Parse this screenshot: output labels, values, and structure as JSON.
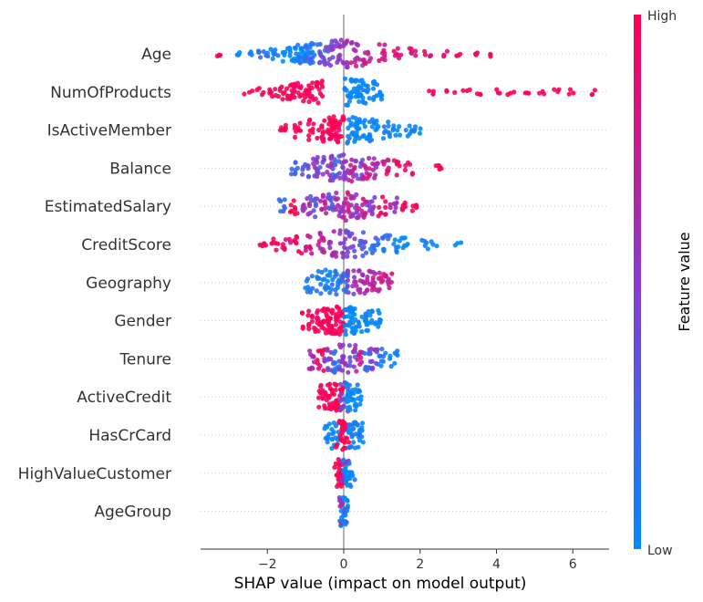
{
  "chart_data": {
    "type": "scatter",
    "title": "",
    "xlabel": "SHAP value (impact on model output)",
    "ylabel": "",
    "xlim": [
      -3.75,
      6.95
    ],
    "xticks": [
      -2,
      0,
      2,
      4,
      6
    ],
    "xtick_labels": [
      "−2",
      "0",
      "2",
      "4",
      "6"
    ],
    "grid": false,
    "colorbar": {
      "label": "Feature value",
      "high_label": "High",
      "low_label": "Low",
      "low_color": "#008bfb",
      "high_color": "#ff0052"
    },
    "features": [
      {
        "name": "Age",
        "points": [
          {
            "x": -3.2,
            "c": 1
          },
          {
            "x": -2.8,
            "c": 0
          },
          {
            "x": -2.5,
            "c": 0
          },
          {
            "x": -2.2,
            "c": 0.1
          },
          {
            "x": -2.0,
            "c": 0.1
          },
          {
            "x": -1.8,
            "c": 0.05
          },
          {
            "x": -1.5,
            "c": 0
          },
          {
            "x": -1.3,
            "c": 0
          },
          {
            "x": -1.2,
            "c": 0
          },
          {
            "x": -1.1,
            "c": 0.1
          },
          {
            "x": -1.0,
            "c": 0
          },
          {
            "x": -0.9,
            "c": 0.2
          },
          {
            "x": -0.8,
            "c": 0.1
          },
          {
            "x": -0.6,
            "c": 0.3
          },
          {
            "x": -0.4,
            "c": 0.4
          },
          {
            "x": -0.2,
            "c": 0.5
          },
          {
            "x": 0.0,
            "c": 0.6
          },
          {
            "x": 0.3,
            "c": 0.7
          },
          {
            "x": 0.6,
            "c": 0.7
          },
          {
            "x": 1.0,
            "c": 0.8
          },
          {
            "x": 1.4,
            "c": 0.85
          },
          {
            "x": 1.8,
            "c": 0.9
          },
          {
            "x": 2.2,
            "c": 0.9
          },
          {
            "x": 2.6,
            "c": 0.95
          },
          {
            "x": 3.0,
            "c": 1
          },
          {
            "x": 3.4,
            "c": 1
          },
          {
            "x": 3.8,
            "c": 1
          }
        ]
      },
      {
        "name": "NumOfProducts",
        "points": [
          {
            "x": -2.5,
            "c": 1
          },
          {
            "x": -2.2,
            "c": 1
          },
          {
            "x": -1.9,
            "c": 1
          },
          {
            "x": -1.7,
            "c": 1
          },
          {
            "x": -1.5,
            "c": 1
          },
          {
            "x": -1.4,
            "c": 1
          },
          {
            "x": -1.3,
            "c": 1
          },
          {
            "x": -1.2,
            "c": 1
          },
          {
            "x": -1.0,
            "c": 1
          },
          {
            "x": -0.8,
            "c": 1
          },
          {
            "x": -0.6,
            "c": 1
          },
          {
            "x": 0.1,
            "c": 0
          },
          {
            "x": 0.3,
            "c": 0
          },
          {
            "x": 0.4,
            "c": 0
          },
          {
            "x": 0.5,
            "c": 0
          },
          {
            "x": 0.7,
            "c": 0
          },
          {
            "x": 0.9,
            "c": 0
          },
          {
            "x": 2.3,
            "c": 1
          },
          {
            "x": 2.8,
            "c": 1
          },
          {
            "x": 3.2,
            "c": 1
          },
          {
            "x": 3.6,
            "c": 1
          },
          {
            "x": 4.0,
            "c": 1
          },
          {
            "x": 4.4,
            "c": 1
          },
          {
            "x": 4.8,
            "c": 1
          },
          {
            "x": 5.2,
            "c": 1
          },
          {
            "x": 5.6,
            "c": 1
          },
          {
            "x": 6.0,
            "c": 1
          },
          {
            "x": 6.5,
            "c": 1
          }
        ]
      },
      {
        "name": "IsActiveMember",
        "points": [
          {
            "x": -1.6,
            "c": 1
          },
          {
            "x": -1.2,
            "c": 1
          },
          {
            "x": -0.9,
            "c": 1
          },
          {
            "x": -0.6,
            "c": 1
          },
          {
            "x": -0.4,
            "c": 1
          },
          {
            "x": -0.3,
            "c": 1
          },
          {
            "x": -0.2,
            "c": 1
          },
          {
            "x": -0.1,
            "c": 1
          },
          {
            "x": 0.2,
            "c": 0
          },
          {
            "x": 0.3,
            "c": 0
          },
          {
            "x": 0.4,
            "c": 0
          },
          {
            "x": 0.6,
            "c": 0
          },
          {
            "x": 0.8,
            "c": 0
          },
          {
            "x": 1.1,
            "c": 0
          },
          {
            "x": 1.4,
            "c": 0
          },
          {
            "x": 1.7,
            "c": 0
          },
          {
            "x": 1.9,
            "c": 0
          }
        ]
      },
      {
        "name": "Balance",
        "points": [
          {
            "x": -1.3,
            "c": 0.2
          },
          {
            "x": -1.0,
            "c": 0.3
          },
          {
            "x": -0.8,
            "c": 0.5
          },
          {
            "x": -0.6,
            "c": 0.4
          },
          {
            "x": -0.4,
            "c": 0.6
          },
          {
            "x": -0.2,
            "c": 0.3
          },
          {
            "x": 0.0,
            "c": 0.5
          },
          {
            "x": 0.2,
            "c": 0.7
          },
          {
            "x": 0.4,
            "c": 0.4
          },
          {
            "x": 0.6,
            "c": 0.8
          },
          {
            "x": 0.8,
            "c": 0.6
          },
          {
            "x": 1.1,
            "c": 0.85
          },
          {
            "x": 1.4,
            "c": 0.9
          },
          {
            "x": 1.7,
            "c": 0.95
          },
          {
            "x": 2.4,
            "c": 1
          },
          {
            "x": 2.6,
            "c": 1
          }
        ]
      },
      {
        "name": "EstimatedSalary",
        "points": [
          {
            "x": -1.6,
            "c": 0.2
          },
          {
            "x": -1.3,
            "c": 1
          },
          {
            "x": -1.0,
            "c": 0.6
          },
          {
            "x": -0.8,
            "c": 0.4
          },
          {
            "x": -0.5,
            "c": 0.7
          },
          {
            "x": -0.3,
            "c": 0.3
          },
          {
            "x": -0.1,
            "c": 0.6
          },
          {
            "x": 0.1,
            "c": 0.8
          },
          {
            "x": 0.3,
            "c": 0.5
          },
          {
            "x": 0.5,
            "c": 0.7
          },
          {
            "x": 0.7,
            "c": 0.5
          },
          {
            "x": 1.0,
            "c": 0.9
          },
          {
            "x": 1.3,
            "c": 0.6
          },
          {
            "x": 1.6,
            "c": 1
          },
          {
            "x": 1.9,
            "c": 1
          }
        ]
      },
      {
        "name": "CreditScore",
        "points": [
          {
            "x": -2.1,
            "c": 1
          },
          {
            "x": -1.8,
            "c": 1
          },
          {
            "x": -1.5,
            "c": 0.9
          },
          {
            "x": -1.2,
            "c": 1
          },
          {
            "x": -0.9,
            "c": 0.8
          },
          {
            "x": -0.6,
            "c": 0.7
          },
          {
            "x": -0.3,
            "c": 0.6
          },
          {
            "x": 0.0,
            "c": 0.5
          },
          {
            "x": 0.2,
            "c": 0.4
          },
          {
            "x": 0.5,
            "c": 0.3
          },
          {
            "x": 0.8,
            "c": 0.2
          },
          {
            "x": 1.1,
            "c": 0.1
          },
          {
            "x": 1.4,
            "c": 0.05
          },
          {
            "x": 1.6,
            "c": 0
          },
          {
            "x": 2.1,
            "c": 0
          },
          {
            "x": 2.4,
            "c": 0
          },
          {
            "x": 3.0,
            "c": 0
          }
        ]
      },
      {
        "name": "Geography",
        "points": [
          {
            "x": -0.9,
            "c": 0.05
          },
          {
            "x": -0.6,
            "c": 0.1
          },
          {
            "x": -0.4,
            "c": 0
          },
          {
            "x": -0.2,
            "c": 0.1
          },
          {
            "x": 0.0,
            "c": 0.2
          },
          {
            "x": 0.2,
            "c": 0.5
          },
          {
            "x": 0.4,
            "c": 0.6
          },
          {
            "x": 0.6,
            "c": 0.7
          },
          {
            "x": 0.8,
            "c": 0.7
          },
          {
            "x": 1.0,
            "c": 0.75
          },
          {
            "x": 1.2,
            "c": 0.8
          }
        ]
      },
      {
        "name": "Gender",
        "points": [
          {
            "x": -1.0,
            "c": 1
          },
          {
            "x": -0.8,
            "c": 1
          },
          {
            "x": -0.6,
            "c": 1
          },
          {
            "x": -0.5,
            "c": 1
          },
          {
            "x": -0.4,
            "c": 1
          },
          {
            "x": -0.3,
            "c": 1
          },
          {
            "x": -0.2,
            "c": 1
          },
          {
            "x": -0.1,
            "c": 1
          },
          {
            "x": 0.1,
            "c": 0
          },
          {
            "x": 0.2,
            "c": 0
          },
          {
            "x": 0.3,
            "c": 0
          },
          {
            "x": 0.5,
            "c": 0
          },
          {
            "x": 0.7,
            "c": 0
          },
          {
            "x": 0.9,
            "c": 0
          }
        ]
      },
      {
        "name": "Tenure",
        "points": [
          {
            "x": -0.8,
            "c": 0.6
          },
          {
            "x": -0.6,
            "c": 1
          },
          {
            "x": -0.4,
            "c": 0.5
          },
          {
            "x": -0.2,
            "c": 0.2
          },
          {
            "x": 0.0,
            "c": 0.6
          },
          {
            "x": 0.2,
            "c": 0.4
          },
          {
            "x": 0.4,
            "c": 0.7
          },
          {
            "x": 0.6,
            "c": 0.2
          },
          {
            "x": 0.8,
            "c": 0.5
          },
          {
            "x": 1.0,
            "c": 0.1
          },
          {
            "x": 1.3,
            "c": 0
          }
        ]
      },
      {
        "name": "ActiveCredit",
        "points": [
          {
            "x": -0.55,
            "c": 1
          },
          {
            "x": -0.4,
            "c": 1
          },
          {
            "x": -0.3,
            "c": 1
          },
          {
            "x": -0.2,
            "c": 1
          },
          {
            "x": -0.1,
            "c": 1
          },
          {
            "x": 0.0,
            "c": 0.4
          },
          {
            "x": 0.1,
            "c": 0
          },
          {
            "x": 0.2,
            "c": 0
          },
          {
            "x": 0.35,
            "c": 0
          }
        ]
      },
      {
        "name": "HasCrCard",
        "points": [
          {
            "x": -0.4,
            "c": 0
          },
          {
            "x": -0.25,
            "c": 0
          },
          {
            "x": -0.1,
            "c": 1
          },
          {
            "x": 0.0,
            "c": 1
          },
          {
            "x": 0.05,
            "c": 1
          },
          {
            "x": 0.15,
            "c": 0
          },
          {
            "x": 0.3,
            "c": 0
          },
          {
            "x": 0.45,
            "c": 0
          }
        ]
      },
      {
        "name": "HighValueCustomer",
        "points": [
          {
            "x": -0.15,
            "c": 1
          },
          {
            "x": -0.08,
            "c": 1
          },
          {
            "x": 0.0,
            "c": 1
          },
          {
            "x": 0.05,
            "c": 0.5
          },
          {
            "x": 0.1,
            "c": 0
          },
          {
            "x": 0.18,
            "c": 0
          }
        ]
      },
      {
        "name": "AgeGroup",
        "points": [
          {
            "x": -0.02,
            "c": 0
          },
          {
            "x": 0.0,
            "c": 0.6
          },
          {
            "x": 0.02,
            "c": 0
          }
        ]
      }
    ]
  }
}
